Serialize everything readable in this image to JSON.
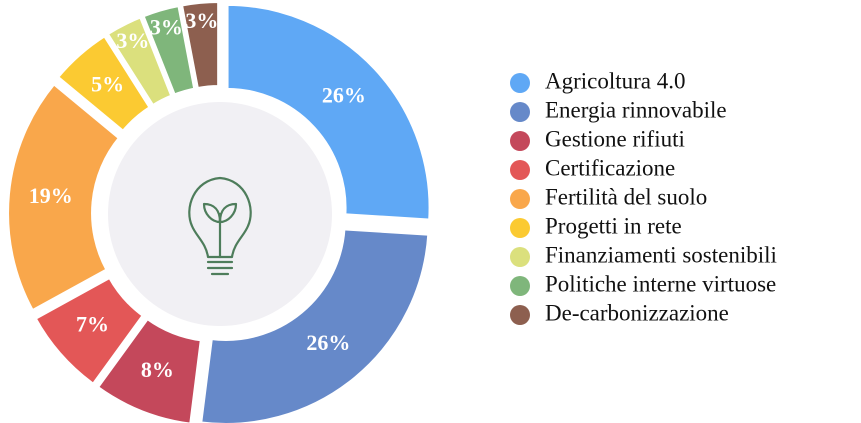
{
  "chart_data": {
    "type": "donut",
    "categories": [
      "Agricoltura 4.0",
      "Energia rinnovabile",
      "Gestione rifiuti",
      "Certificazione",
      "Fertilità del suolo",
      "Progetti in rete",
      "Finanziamenti sostenibili",
      "Politiche interne virtuose",
      "De-carbonizzazione"
    ],
    "values": [
      26,
      26,
      8,
      7,
      19,
      5,
      3,
      3,
      3
    ],
    "value_labels": [
      "26%",
      "26%",
      "8%",
      "7%",
      "19%",
      "5%",
      "3%",
      "3%",
      "3%"
    ],
    "colors": [
      "#5fa8f5",
      "#6689c9",
      "#c4485b",
      "#e35757",
      "#f9a74b",
      "#fbca32",
      "#dbe07d",
      "#7fb67b",
      "#8d5f4f"
    ],
    "legend": "right"
  }
}
